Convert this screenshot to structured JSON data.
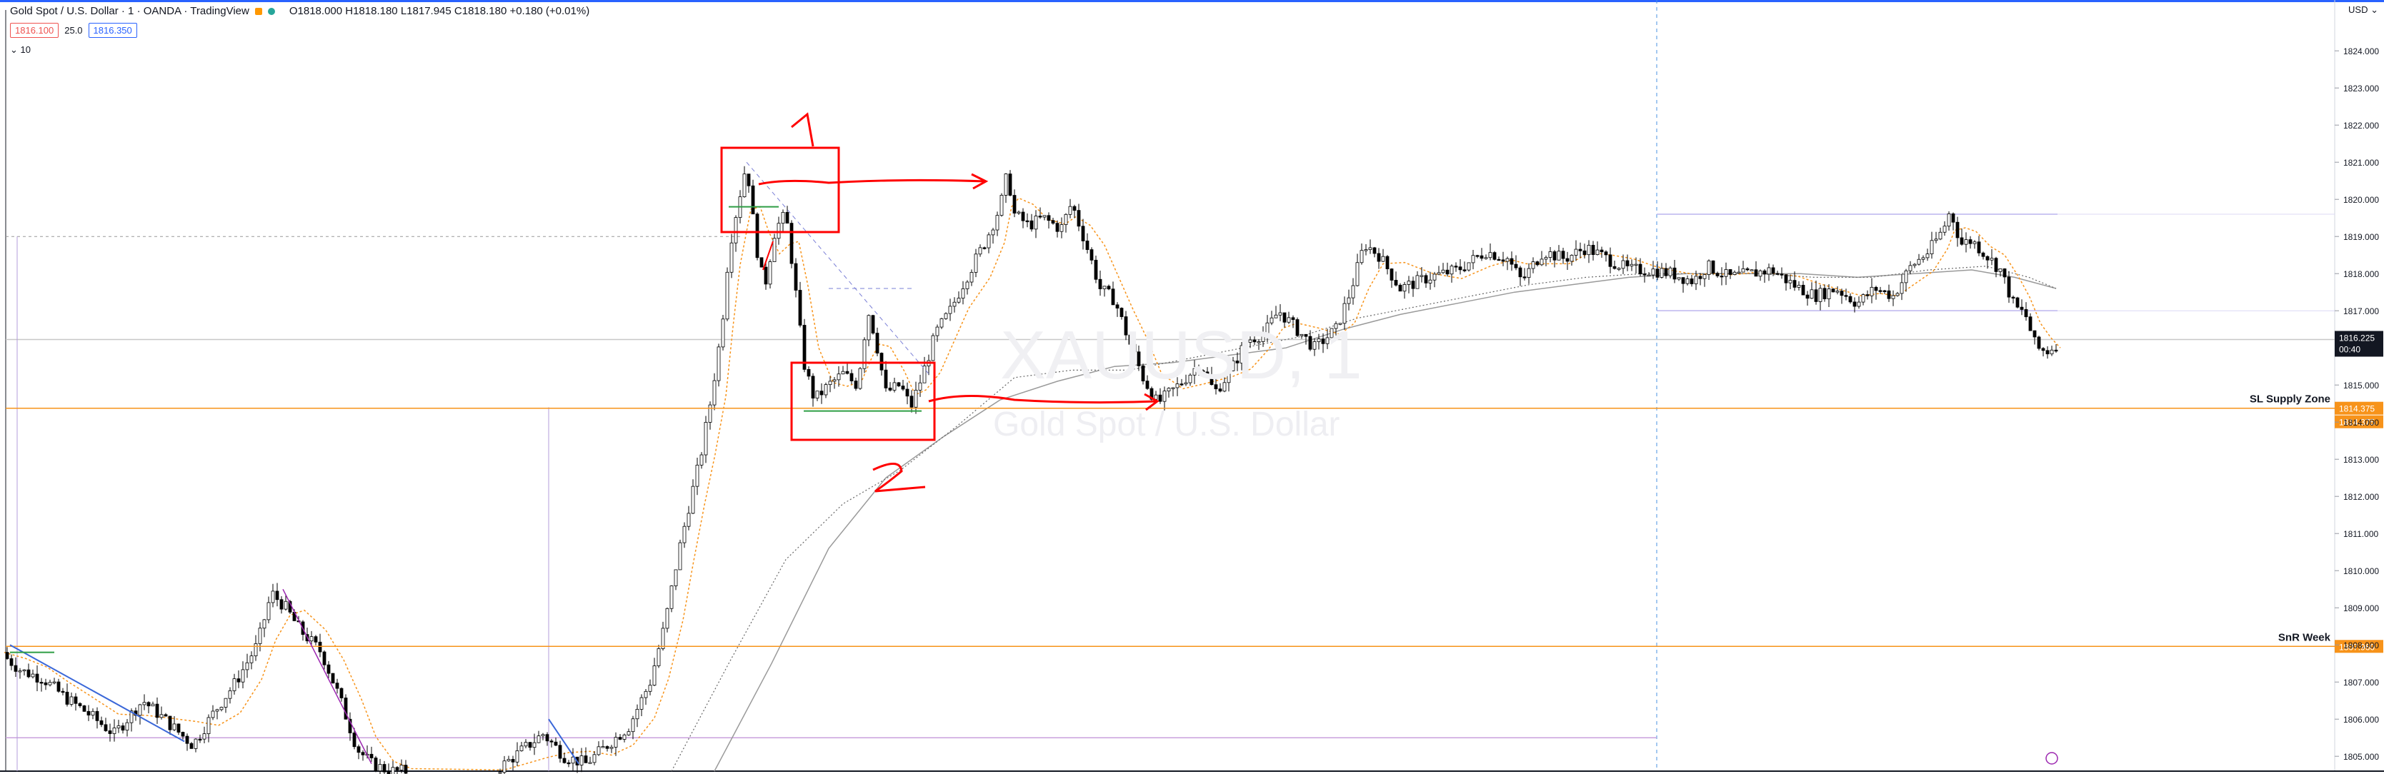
{
  "header": {
    "symbol_title": "Gold Spot / U.S. Dollar · 1 · OANDA · TradingView",
    "ohlc": "O1818.000 H1818.180 L1817.945 C1818.180 +0.180 (+0.01%)",
    "bid": "1816.100",
    "spread": "25.0",
    "ask": "1816.350",
    "indicator": "10",
    "currency": "USD"
  },
  "colors": {
    "bg": "#ffffff",
    "grid": "#eef0f5",
    "candle": "#000000",
    "orange": "#f7931a",
    "red_annot": "#ff0000",
    "blue_line": "#3a67d8",
    "purple": "#9c27b0",
    "violet": "#7c6fe0",
    "ma_gray": "#9a9a9a"
  },
  "chart_data": {
    "type": "line",
    "title": "Gold Spot / U.S. Dollar · 1 · OANDA",
    "watermark": "XAUUSD, 1",
    "watermark_sub": "Gold Spot / U.S. Dollar",
    "ylim": [
      1804.6,
      1825.1
    ],
    "y_ticks": [
      1824,
      1823,
      1822,
      1821,
      1820,
      1819,
      1818,
      1817,
      1815,
      1814,
      1813,
      1812,
      1811,
      1810,
      1809,
      1808,
      1807,
      1806,
      1805
    ],
    "y_tick_labels": [
      "1824.000",
      "1823.000",
      "1822.000",
      "1821.000",
      "1820.000",
      "1819.000",
      "1818.000",
      "1817.000",
      "1815.000",
      "1814.000",
      "1813.000",
      "1812.000",
      "1811.000",
      "1810.000",
      "1809.000",
      "1808.000",
      "1807.000",
      "1806.000",
      "1805.000"
    ],
    "price_path": [
      [
        0,
        1807.8
      ],
      [
        30,
        1807.3
      ],
      [
        60,
        1807.1
      ],
      [
        90,
        1806.6
      ],
      [
        120,
        1806.2
      ],
      [
        160,
        1805.6
      ],
      [
        200,
        1806.5
      ],
      [
        230,
        1806.0
      ],
      [
        270,
        1805.3
      ],
      [
        300,
        1806.2
      ],
      [
        330,
        1807.0
      ],
      [
        360,
        1808.0
      ],
      [
        380,
        1809.4
      ],
      [
        400,
        1809.0
      ],
      [
        420,
        1808.4
      ],
      [
        450,
        1807.8
      ],
      [
        475,
        1806.6
      ],
      [
        500,
        1805.2
      ],
      [
        520,
        1804.8
      ],
      [
        545,
        1804.6
      ],
      [
        570,
        1804.6
      ],
      [
        700,
        1804.7
      ],
      [
        760,
        1805.6
      ],
      [
        790,
        1805.0
      ],
      [
        820,
        1804.8
      ],
      [
        850,
        1805.3
      ],
      [
        880,
        1805.8
      ],
      [
        910,
        1807.0
      ],
      [
        930,
        1808.5
      ],
      [
        950,
        1810.5
      ],
      [
        965,
        1811.8
      ],
      [
        980,
        1813.0
      ],
      [
        995,
        1814.6
      ],
      [
        1010,
        1816.5
      ],
      [
        1020,
        1818.6
      ],
      [
        1030,
        1819.6
      ],
      [
        1045,
        1821.0
      ],
      [
        1058,
        1818.8
      ],
      [
        1070,
        1817.6
      ],
      [
        1085,
        1819.2
      ],
      [
        1100,
        1819.6
      ],
      [
        1112,
        1817.8
      ],
      [
        1125,
        1815.6
      ],
      [
        1140,
        1814.6
      ],
      [
        1160,
        1815.0
      ],
      [
        1180,
        1815.3
      ],
      [
        1200,
        1815.0
      ],
      [
        1215,
        1817.0
      ],
      [
        1225,
        1816.3
      ],
      [
        1240,
        1814.8
      ],
      [
        1260,
        1815.0
      ],
      [
        1275,
        1814.4
      ],
      [
        1290,
        1815.2
      ],
      [
        1310,
        1816.4
      ],
      [
        1330,
        1817.0
      ],
      [
        1350,
        1817.8
      ],
      [
        1380,
        1818.9
      ],
      [
        1400,
        1819.8
      ],
      [
        1410,
        1820.7
      ],
      [
        1420,
        1819.6
      ],
      [
        1440,
        1819.3
      ],
      [
        1460,
        1819.5
      ],
      [
        1485,
        1819.2
      ],
      [
        1500,
        1819.9
      ],
      [
        1520,
        1818.8
      ],
      [
        1540,
        1817.6
      ],
      [
        1560,
        1817.3
      ],
      [
        1580,
        1816.2
      ],
      [
        1600,
        1815.2
      ],
      [
        1620,
        1814.5
      ],
      [
        1650,
        1815.0
      ],
      [
        1680,
        1815.6
      ],
      [
        1700,
        1814.8
      ],
      [
        1720,
        1815.3
      ],
      [
        1745,
        1816.2
      ],
      [
        1770,
        1816.4
      ],
      [
        1790,
        1817.0
      ],
      [
        1810,
        1816.6
      ],
      [
        1840,
        1816.0
      ],
      [
        1870,
        1816.5
      ],
      [
        1890,
        1817.5
      ],
      [
        1910,
        1818.8
      ],
      [
        1930,
        1818.5
      ],
      [
        1960,
        1817.6
      ],
      [
        2000,
        1817.9
      ],
      [
        2040,
        1818.1
      ],
      [
        2080,
        1818.6
      ],
      [
        2110,
        1818.4
      ],
      [
        2130,
        1817.8
      ],
      [
        2160,
        1818.6
      ],
      [
        2190,
        1818.4
      ],
      [
        2220,
        1818.7
      ],
      [
        2250,
        1818.4
      ],
      [
        2280,
        1818.1
      ],
      [
        2310,
        1818.1
      ],
      [
        2340,
        1818.0
      ],
      [
        2370,
        1817.8
      ],
      [
        2390,
        1818.2
      ],
      [
        2420,
        1817.9
      ],
      [
        2450,
        1818.0
      ],
      [
        2480,
        1818.1
      ],
      [
        2510,
        1817.7
      ],
      [
        2540,
        1817.4
      ],
      [
        2570,
        1817.6
      ],
      [
        2600,
        1817.2
      ],
      [
        2625,
        1817.6
      ],
      [
        2650,
        1817.4
      ],
      [
        2675,
        1818.2
      ],
      [
        2700,
        1818.6
      ],
      [
        2720,
        1819.2
      ],
      [
        2730,
        1819.7
      ],
      [
        2745,
        1818.8
      ],
      [
        2760,
        1818.9
      ],
      [
        2780,
        1818.5
      ],
      [
        2800,
        1818.1
      ],
      [
        2820,
        1817.1
      ],
      [
        2835,
        1816.9
      ],
      [
        2850,
        1816.0
      ],
      [
        2865,
        1815.9
      ],
      [
        2878,
        1816.1
      ]
    ],
    "ma_slow": [
      [
        1000,
        1804.6
      ],
      [
        1080,
        1807.5
      ],
      [
        1160,
        1810.6
      ],
      [
        1240,
        1812.5
      ],
      [
        1320,
        1813.6
      ],
      [
        1400,
        1814.6
      ],
      [
        1480,
        1815.1
      ],
      [
        1560,
        1815.5
      ],
      [
        1640,
        1815.6
      ],
      [
        1720,
        1815.8
      ],
      [
        1800,
        1816.0
      ],
      [
        1880,
        1816.5
      ],
      [
        1960,
        1816.9
      ],
      [
        2040,
        1817.2
      ],
      [
        2120,
        1817.5
      ],
      [
        2200,
        1817.7
      ],
      [
        2280,
        1817.9
      ],
      [
        2360,
        1818.0
      ],
      [
        2440,
        1818.0
      ],
      [
        2520,
        1818.0
      ],
      [
        2600,
        1817.9
      ],
      [
        2680,
        1818.0
      ],
      [
        2760,
        1818.1
      ],
      [
        2820,
        1817.9
      ],
      [
        2878,
        1817.6
      ]
    ],
    "ma_mid": [
      [
        940,
        1804.6
      ],
      [
        1020,
        1807.5
      ],
      [
        1100,
        1810.3
      ],
      [
        1180,
        1811.8
      ],
      [
        1260,
        1812.7
      ],
      [
        1340,
        1813.9
      ],
      [
        1420,
        1815.2
      ],
      [
        1500,
        1815.4
      ],
      [
        1580,
        1815.4
      ],
      [
        1660,
        1815.7
      ],
      [
        1740,
        1816.0
      ],
      [
        1820,
        1816.3
      ],
      [
        1900,
        1816.8
      ],
      [
        1980,
        1817.1
      ],
      [
        2060,
        1817.4
      ],
      [
        2140,
        1817.7
      ],
      [
        2220,
        1817.9
      ],
      [
        2300,
        1818.0
      ],
      [
        2380,
        1818.0
      ],
      [
        2460,
        1818.0
      ],
      [
        2540,
        1817.9
      ],
      [
        2620,
        1817.9
      ],
      [
        2700,
        1818.1
      ],
      [
        2780,
        1818.2
      ],
      [
        2840,
        1817.9
      ],
      [
        2878,
        1817.6
      ]
    ],
    "h_levels": [
      {
        "price": 1814.375,
        "label": "SL Supply Zone",
        "tag": "1814.375",
        "color": "#f7931a"
      },
      {
        "price": 1807.96,
        "label": "SnR Week",
        "tag": "1807.960",
        "color": "#f7931a"
      }
    ],
    "last_price_tag": "1816.225",
    "countdown_tag": "00:40"
  }
}
